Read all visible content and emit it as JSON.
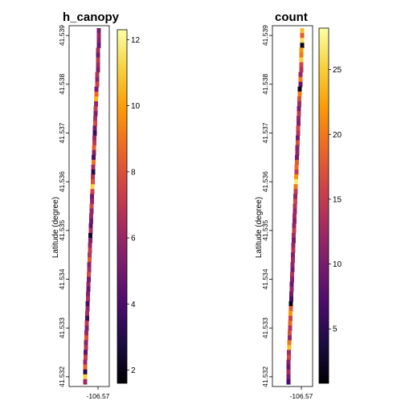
{
  "chart_data": [
    {
      "type": "heatmap",
      "title": "h_canopy",
      "ylabel": "Latitude (degree)",
      "xlabel": "",
      "x_tick_labels": [
        "-106.57"
      ],
      "y_tick_labels": [
        "41.532",
        "41.533",
        "41.534",
        "41.535",
        "41.536",
        "41.537",
        "41.538",
        "41.539"
      ],
      "ylim": [
        41.5318,
        41.5392
      ],
      "colorbar": {
        "range": [
          1.6,
          12.3
        ],
        "ticks": [
          2,
          4,
          6,
          8,
          10,
          12
        ]
      },
      "colormap": [
        "#000004",
        "#1b0c41",
        "#4a0c6b",
        "#781c6d",
        "#a52c60",
        "#cf4446",
        "#ed6925",
        "#fb9b06",
        "#f7d13d",
        "#fcffa4"
      ],
      "cells": [
        [
          41.5391,
          0.74,
          5.2
        ],
        [
          41.539,
          0.74,
          6.0
        ],
        [
          41.5389,
          0.74,
          5.6
        ],
        [
          41.5388,
          0.74,
          4.8
        ],
        [
          41.5387,
          0.72,
          6.4
        ],
        [
          41.5386,
          0.72,
          5.0
        ],
        [
          41.5385,
          0.72,
          7.0
        ],
        [
          41.5384,
          0.72,
          6.2
        ],
        [
          41.5383,
          0.72,
          5.4
        ],
        [
          41.5382,
          0.7,
          6.8
        ],
        [
          41.5381,
          0.7,
          5.8
        ],
        [
          41.538,
          0.7,
          7.4
        ],
        [
          41.5379,
          0.68,
          5.2
        ],
        [
          41.5378,
          0.68,
          8.6
        ],
        [
          41.5377,
          0.67,
          10.5
        ],
        [
          41.5376,
          0.67,
          6.0
        ],
        [
          41.5375,
          0.66,
          7.2
        ],
        [
          41.5374,
          0.66,
          5.4
        ],
        [
          41.5373,
          0.65,
          6.6
        ],
        [
          41.5372,
          0.65,
          7.8
        ],
        [
          41.5371,
          0.64,
          5.0
        ],
        [
          41.537,
          0.64,
          3.5
        ],
        [
          41.5369,
          0.63,
          6.2
        ],
        [
          41.5368,
          0.63,
          7.0
        ],
        [
          41.5367,
          0.62,
          8.4
        ],
        [
          41.5366,
          0.62,
          5.6
        ],
        [
          41.5365,
          0.61,
          4.2
        ],
        [
          41.5364,
          0.61,
          9.0
        ],
        [
          41.5363,
          0.6,
          6.4
        ],
        [
          41.5362,
          0.6,
          3.0
        ],
        [
          41.5361,
          0.59,
          6.8
        ],
        [
          41.536,
          0.59,
          8.0
        ],
        [
          41.5359,
          0.58,
          11.2
        ],
        [
          41.5358,
          0.58,
          7.4
        ],
        [
          41.5357,
          0.57,
          5.2
        ],
        [
          41.5356,
          0.57,
          6.0
        ],
        [
          41.5355,
          0.56,
          7.6
        ],
        [
          41.5354,
          0.56,
          5.8
        ],
        [
          41.5353,
          0.55,
          6.2
        ],
        [
          41.5352,
          0.55,
          5.0
        ],
        [
          41.5351,
          0.54,
          4.6
        ],
        [
          41.535,
          0.54,
          6.6
        ],
        [
          41.5349,
          0.53,
          2.4
        ],
        [
          41.5348,
          0.53,
          5.4
        ],
        [
          41.5347,
          0.52,
          6.0
        ],
        [
          41.5346,
          0.52,
          7.2
        ],
        [
          41.5345,
          0.51,
          6.8
        ],
        [
          41.5344,
          0.51,
          8.2
        ],
        [
          41.5343,
          0.5,
          5.6
        ],
        [
          41.5342,
          0.5,
          6.4
        ],
        [
          41.5341,
          0.49,
          7.8
        ],
        [
          41.534,
          0.49,
          5.2
        ],
        [
          41.5339,
          0.48,
          6.0
        ],
        [
          41.5338,
          0.48,
          4.8
        ],
        [
          41.5337,
          0.47,
          5.6
        ],
        [
          41.5336,
          0.47,
          6.6
        ],
        [
          41.5335,
          0.46,
          4.0
        ],
        [
          41.5334,
          0.46,
          5.8
        ],
        [
          41.5333,
          0.45,
          6.4
        ],
        [
          41.5332,
          0.45,
          3.6
        ],
        [
          41.5331,
          0.44,
          7.0
        ],
        [
          41.533,
          0.44,
          5.4
        ],
        [
          41.5329,
          0.43,
          6.2
        ],
        [
          41.5328,
          0.43,
          8.0
        ],
        [
          41.5327,
          0.42,
          5.6
        ],
        [
          41.5326,
          0.42,
          6.8
        ],
        [
          41.5325,
          0.41,
          4.6
        ],
        [
          41.5324,
          0.41,
          7.4
        ],
        [
          41.5323,
          0.4,
          6.0
        ],
        [
          41.5322,
          0.4,
          8.6
        ],
        [
          41.5321,
          0.4,
          3.0
        ],
        [
          41.532,
          0.4,
          11.0
        ],
        [
          41.5319,
          0.4,
          6.2
        ]
      ]
    },
    {
      "type": "heatmap",
      "title": "count",
      "ylabel": "Latitude (degree)",
      "xlabel": "",
      "x_tick_labels": [
        "-106.57"
      ],
      "y_tick_labels": [
        "41.532",
        "41.533",
        "41.534",
        "41.535",
        "41.536",
        "41.537",
        "41.538",
        "41.539"
      ],
      "ylim": [
        41.5318,
        41.5392
      ],
      "colorbar": {
        "range": [
          0.8,
          28.2
        ],
        "ticks": [
          5,
          10,
          15,
          20,
          25
        ]
      },
      "colormap": [
        "#000004",
        "#1b0c41",
        "#4a0c6b",
        "#781c6d",
        "#a52c60",
        "#cf4446",
        "#ed6925",
        "#fb9b06",
        "#f7d13d",
        "#fcffa4"
      ],
      "cells": [
        [
          41.5391,
          0.74,
          24
        ],
        [
          41.539,
          0.74,
          18
        ],
        [
          41.5389,
          0.74,
          26
        ],
        [
          41.5388,
          0.74,
          2
        ],
        [
          41.5387,
          0.72,
          22
        ],
        [
          41.5386,
          0.72,
          20
        ],
        [
          41.5385,
          0.72,
          25
        ],
        [
          41.5384,
          0.72,
          16
        ],
        [
          41.5383,
          0.72,
          14
        ],
        [
          41.5382,
          0.7,
          12
        ],
        [
          41.5381,
          0.7,
          20
        ],
        [
          41.538,
          0.7,
          9
        ],
        [
          41.5379,
          0.68,
          2
        ],
        [
          41.5378,
          0.68,
          20
        ],
        [
          41.5377,
          0.67,
          17
        ],
        [
          41.5376,
          0.67,
          13
        ],
        [
          41.5375,
          0.66,
          10
        ],
        [
          41.5374,
          0.66,
          15
        ],
        [
          41.5373,
          0.65,
          12
        ],
        [
          41.5372,
          0.65,
          11
        ],
        [
          41.5371,
          0.64,
          16
        ],
        [
          41.537,
          0.64,
          14
        ],
        [
          41.5369,
          0.63,
          10
        ],
        [
          41.5368,
          0.63,
          17
        ],
        [
          41.5367,
          0.62,
          11
        ],
        [
          41.5366,
          0.62,
          12
        ],
        [
          41.5365,
          0.61,
          10
        ],
        [
          41.5364,
          0.61,
          18
        ],
        [
          41.5363,
          0.6,
          19
        ],
        [
          41.5362,
          0.6,
          15
        ],
        [
          41.5361,
          0.59,
          22
        ],
        [
          41.536,
          0.59,
          27
        ],
        [
          41.5359,
          0.58,
          20
        ],
        [
          41.5358,
          0.58,
          15
        ],
        [
          41.5357,
          0.57,
          12
        ],
        [
          41.5356,
          0.57,
          16
        ],
        [
          41.5355,
          0.56,
          14
        ],
        [
          41.5354,
          0.56,
          12
        ],
        [
          41.5353,
          0.55,
          13
        ],
        [
          41.5352,
          0.55,
          11
        ],
        [
          41.5351,
          0.54,
          12
        ],
        [
          41.535,
          0.54,
          15
        ],
        [
          41.5349,
          0.53,
          13
        ],
        [
          41.5348,
          0.53,
          10
        ],
        [
          41.5347,
          0.52,
          12
        ],
        [
          41.5346,
          0.52,
          14
        ],
        [
          41.5345,
          0.51,
          11
        ],
        [
          41.5344,
          0.51,
          13
        ],
        [
          41.5343,
          0.5,
          12
        ],
        [
          41.5342,
          0.5,
          10
        ],
        [
          41.5341,
          0.49,
          14
        ],
        [
          41.534,
          0.49,
          11
        ],
        [
          41.5339,
          0.48,
          9
        ],
        [
          41.5338,
          0.48,
          12
        ],
        [
          41.5337,
          0.47,
          10
        ],
        [
          41.5336,
          0.47,
          7
        ],
        [
          41.5335,
          0.46,
          2
        ],
        [
          41.5334,
          0.46,
          18
        ],
        [
          41.5333,
          0.45,
          22
        ],
        [
          41.5332,
          0.45,
          16
        ],
        [
          41.5331,
          0.44,
          19
        ],
        [
          41.533,
          0.44,
          14
        ],
        [
          41.5329,
          0.43,
          17
        ],
        [
          41.5328,
          0.43,
          12
        ],
        [
          41.5327,
          0.42,
          20
        ],
        [
          41.5326,
          0.42,
          24
        ],
        [
          41.5325,
          0.41,
          13
        ],
        [
          41.5324,
          0.41,
          16
        ],
        [
          41.5323,
          0.4,
          11
        ],
        [
          41.5322,
          0.4,
          9
        ],
        [
          41.5321,
          0.4,
          13
        ],
        [
          41.532,
          0.4,
          10
        ],
        [
          41.5319,
          0.4,
          7
        ]
      ]
    }
  ]
}
